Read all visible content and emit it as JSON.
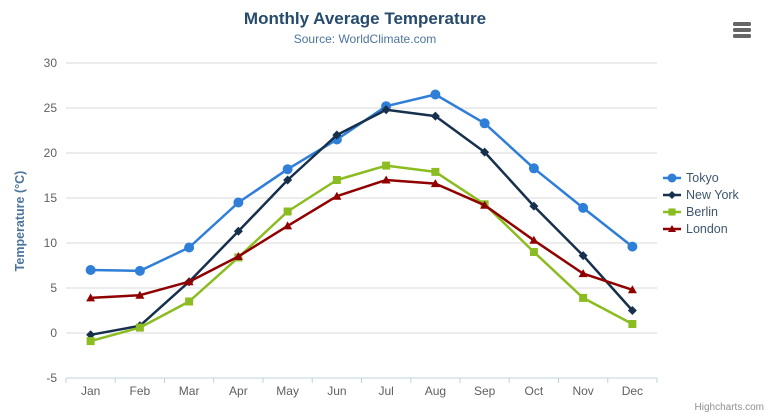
{
  "header": {
    "title": "Monthly Average Temperature",
    "subtitle": "Source: WorldClimate.com"
  },
  "toolbar": {
    "export_menu_icon": "hamburger-menu-icon"
  },
  "credit": {
    "label": "Highcharts.com"
  },
  "theme": {
    "title_color": "#274b6d",
    "subtitle_color": "#4d759e",
    "axis_title_color": "#4d759e",
    "axis_label_color": "#606060",
    "gridline_color": "#d8d8d8",
    "axis_line_color": "#c0d0e0",
    "legend_text_color": "#3e576f",
    "credit_color": "#909090",
    "background": "#ffffff"
  },
  "chart_data": {
    "type": "line",
    "title": "Monthly Average Temperature",
    "subtitle": "Source: WorldClimate.com",
    "xlabel": "",
    "ylabel": "Temperature (°C)",
    "ylim": [
      -5,
      30
    ],
    "yticks": [
      -5,
      0,
      5,
      10,
      15,
      20,
      25,
      30
    ],
    "grid": true,
    "legend_position": "right",
    "categories": [
      "Jan",
      "Feb",
      "Mar",
      "Apr",
      "May",
      "Jun",
      "Jul",
      "Aug",
      "Sep",
      "Oct",
      "Nov",
      "Dec"
    ],
    "series": [
      {
        "name": "Tokyo",
        "color": "#2f7ed8",
        "marker": "circle",
        "values": [
          7.0,
          6.9,
          9.5,
          14.5,
          18.2,
          21.5,
          25.2,
          26.5,
          23.3,
          18.3,
          13.9,
          9.6
        ]
      },
      {
        "name": "New York",
        "color": "#16304d",
        "marker": "diamond",
        "values": [
          -0.2,
          0.8,
          5.7,
          11.3,
          17.0,
          22.0,
          24.8,
          24.1,
          20.1,
          14.1,
          8.6,
          2.5
        ]
      },
      {
        "name": "Berlin",
        "color": "#8bbc21",
        "marker": "square",
        "values": [
          -0.9,
          0.6,
          3.5,
          8.4,
          13.5,
          17.0,
          18.6,
          17.9,
          14.3,
          9.0,
          3.9,
          1.0
        ]
      },
      {
        "name": "London",
        "color": "#910000",
        "marker": "triangle",
        "values": [
          3.9,
          4.2,
          5.7,
          8.5,
          11.9,
          15.2,
          17.0,
          16.6,
          14.2,
          10.3,
          6.6,
          4.8
        ]
      }
    ]
  }
}
